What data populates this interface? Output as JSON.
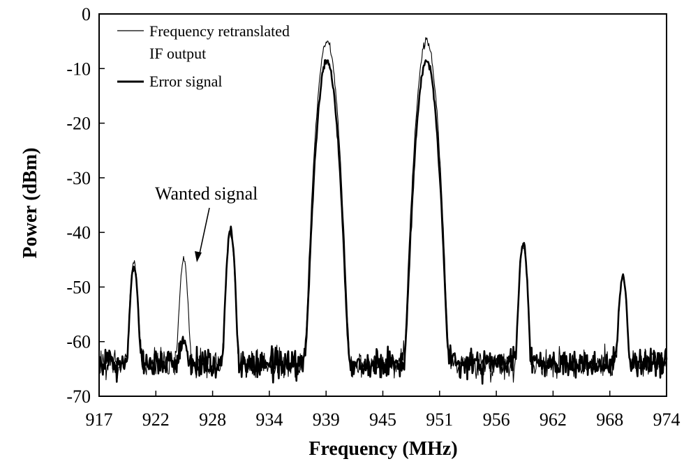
{
  "chart_data": {
    "type": "line",
    "title": "",
    "xlabel": "Frequency (MHz)",
    "ylabel": "Power (dBm)",
    "xlim": [
      917,
      974
    ],
    "ylim": [
      -70,
      0
    ],
    "x_ticks": [
      "917",
      "922",
      "928",
      "934",
      "939",
      "945",
      "951",
      "956",
      "962",
      "968",
      "974"
    ],
    "y_ticks": [
      "0",
      "-10",
      "-20",
      "-30",
      "-40",
      "-50",
      "-60",
      "-70"
    ],
    "grid": false,
    "legend_position": "top-left",
    "noise_floor_dbm": -64,
    "series": [
      {
        "name": "Frequency retranslated IF output",
        "line_style": "thin",
        "peaks": [
          {
            "x": 920.5,
            "y": -45.5
          },
          {
            "x": 925.5,
            "y": -45
          },
          {
            "x": 930.2,
            "y": -40
          },
          {
            "x": 939.9,
            "y": -5
          },
          {
            "x": 949.9,
            "y": -5
          },
          {
            "x": 959.6,
            "y": -42.5
          },
          {
            "x": 969.6,
            "y": -48.5
          }
        ]
      },
      {
        "name": "Error signal",
        "line_style": "thick",
        "peaks": [
          {
            "x": 920.5,
            "y": -46.5
          },
          {
            "x": 925.5,
            "y": -61
          },
          {
            "x": 930.2,
            "y": -39.5
          },
          {
            "x": 939.9,
            "y": -8.5
          },
          {
            "x": 949.9,
            "y": -8.5
          },
          {
            "x": 959.6,
            "y": -42
          },
          {
            "x": 969.6,
            "y": -48
          }
        ]
      }
    ],
    "legend": [
      {
        "line1": "Frequency retranslated",
        "line2": "IF output"
      },
      {
        "line1": "Error signal",
        "line2": ""
      }
    ],
    "annotations": [
      {
        "text": "Wanted signal",
        "target_x": 925.6,
        "target_y": -46
      }
    ]
  }
}
